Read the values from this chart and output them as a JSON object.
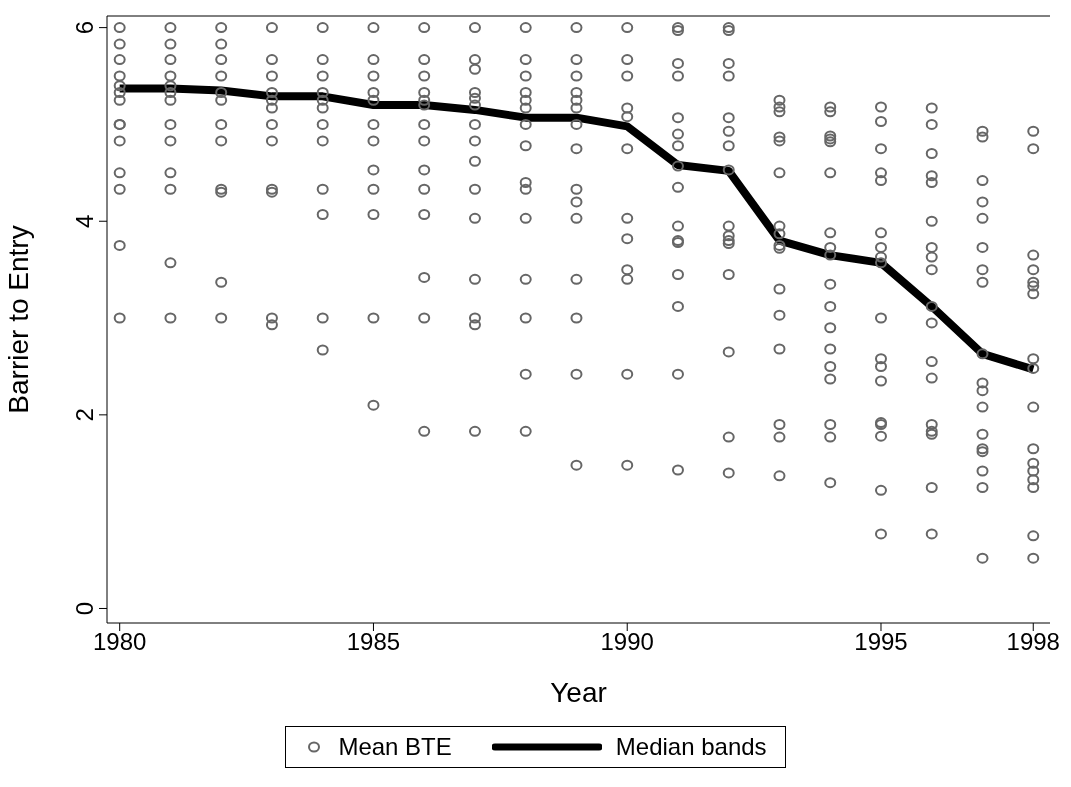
{
  "chart_data": {
    "type": "scatter",
    "xlabel": "Year",
    "ylabel": "Barrier to Entry",
    "xlim": [
      1979.75,
      1998.33
    ],
    "xticks": [
      1980,
      1985,
      1990,
      1995,
      1998
    ],
    "ylim": [
      -0.15,
      6.12
    ],
    "yticks": [
      0,
      2,
      4,
      6
    ],
    "grid": false,
    "legend": "bottom",
    "series": [
      {
        "name": "Mean BTE",
        "marker": "circle",
        "color": "#666666",
        "x": [
          1980,
          1980,
          1980,
          1980,
          1980,
          1980,
          1980,
          1980,
          1980,
          1980,
          1980,
          1980,
          1980,
          1980,
          1981,
          1981,
          1981,
          1981,
          1981,
          1981,
          1981,
          1981,
          1981,
          1981,
          1981,
          1981,
          1981,
          1982,
          1982,
          1982,
          1982,
          1982,
          1982,
          1982,
          1982,
          1982,
          1982,
          1982,
          1982,
          1983,
          1983,
          1983,
          1983,
          1983,
          1983,
          1983,
          1983,
          1983,
          1983,
          1983,
          1983,
          1984,
          1984,
          1984,
          1984,
          1984,
          1984,
          1984,
          1984,
          1984,
          1984,
          1984,
          1984,
          1985,
          1985,
          1985,
          1985,
          1985,
          1985,
          1985,
          1985,
          1985,
          1985,
          1985,
          1985,
          1986,
          1986,
          1986,
          1986,
          1986,
          1986,
          1986,
          1986,
          1986,
          1986,
          1986,
          1986,
          1986,
          1986,
          1987,
          1987,
          1987,
          1987,
          1987,
          1987,
          1987,
          1987,
          1987,
          1987,
          1987,
          1987,
          1987,
          1987,
          1987,
          1988,
          1988,
          1988,
          1988,
          1988,
          1988,
          1988,
          1988,
          1988,
          1988,
          1988,
          1988,
          1988,
          1988,
          1988,
          1989,
          1989,
          1989,
          1989,
          1989,
          1989,
          1989,
          1989,
          1989,
          1989,
          1989,
          1989,
          1989,
          1989,
          1989,
          1990,
          1990,
          1990,
          1990,
          1990,
          1990,
          1990,
          1990,
          1990,
          1990,
          1990,
          1990,
          1991,
          1991,
          1991,
          1991,
          1991,
          1991,
          1991,
          1991,
          1991,
          1991,
          1991,
          1991,
          1991,
          1991,
          1991,
          1991,
          1992,
          1992,
          1992,
          1992,
          1992,
          1992,
          1992,
          1992,
          1992,
          1992,
          1992,
          1992,
          1992,
          1992,
          1992,
          1992,
          1993,
          1993,
          1993,
          1993,
          1993,
          1993,
          1993,
          1993,
          1993,
          1993,
          1993,
          1993,
          1993,
          1993,
          1993,
          1993,
          1994,
          1994,
          1994,
          1994,
          1994,
          1994,
          1994,
          1994,
          1994,
          1994,
          1994,
          1994,
          1994,
          1994,
          1994,
          1994,
          1994,
          1994,
          1995,
          1995,
          1995,
          1995,
          1995,
          1995,
          1995,
          1995,
          1995,
          1995,
          1995,
          1995,
          1995,
          1995,
          1995,
          1995,
          1995,
          1995,
          1996,
          1996,
          1996,
          1996,
          1996,
          1996,
          1996,
          1996,
          1996,
          1996,
          1996,
          1996,
          1996,
          1996,
          1996,
          1996,
          1996,
          1996,
          1997,
          1997,
          1997,
          1997,
          1997,
          1997,
          1997,
          1997,
          1997,
          1997,
          1997,
          1997,
          1997,
          1997,
          1997,
          1997,
          1997,
          1997,
          1998,
          1998,
          1998,
          1998,
          1998,
          1998,
          1998,
          1998,
          1998,
          1998,
          1998,
          1998,
          1998,
          1998,
          1998,
          1998,
          1998
        ],
        "values": [
          6,
          5.83,
          5.67,
          5.5,
          5.4,
          5.33,
          5.25,
          5.0,
          5.0,
          4.83,
          4.5,
          4.33,
          3.75,
          3.0,
          6,
          5.83,
          5.67,
          5.5,
          5.4,
          5.33,
          5.25,
          5.0,
          4.83,
          4.5,
          4.33,
          3.57,
          3.0,
          6,
          5.83,
          5.67,
          5.5,
          5.33,
          5.25,
          5.0,
          4.83,
          4.33,
          4.3,
          3.37,
          3.0,
          6,
          5.67,
          5.5,
          5.33,
          5.25,
          5.17,
          5.0,
          4.83,
          4.33,
          4.3,
          3.0,
          2.93,
          6,
          5.67,
          5.5,
          5.33,
          5.25,
          5.17,
          5.0,
          4.83,
          4.33,
          4.07,
          3.0,
          2.67,
          6,
          5.67,
          5.5,
          5.33,
          5.25,
          5.0,
          4.83,
          4.53,
          4.33,
          4.07,
          3.0,
          2.1,
          6,
          5.67,
          5.5,
          5.33,
          5.25,
          5.2,
          5.0,
          4.83,
          4.53,
          4.33,
          4.07,
          3.42,
          3.0,
          1.83,
          6,
          5.67,
          5.57,
          5.33,
          5.27,
          5.2,
          5.0,
          4.83,
          4.62,
          4.33,
          4.03,
          3.4,
          3.0,
          2.93,
          1.83,
          6,
          5.67,
          5.5,
          5.33,
          5.25,
          5.17,
          5.0,
          4.78,
          4.4,
          4.33,
          4.03,
          3.4,
          3.0,
          2.42,
          1.83,
          6,
          5.67,
          5.5,
          5.33,
          5.25,
          5.17,
          5.0,
          4.75,
          4.33,
          4.2,
          4.03,
          3.4,
          3.0,
          2.42,
          1.48,
          6,
          5.67,
          5.5,
          5.17,
          5.08,
          4.75,
          4.03,
          3.82,
          3.5,
          3.4,
          2.42,
          1.48,
          6,
          5.97,
          5.63,
          5.5,
          5.07,
          4.9,
          4.78,
          4.57,
          4.35,
          3.95,
          3.8,
          3.78,
          3.45,
          3.12,
          2.42,
          1.43,
          6,
          5.97,
          5.63,
          5.5,
          5.07,
          4.93,
          4.78,
          4.53,
          3.95,
          3.85,
          3.8,
          3.77,
          3.45,
          2.65,
          1.77,
          1.4,
          5.25,
          5.18,
          5.13,
          4.87,
          4.83,
          4.5,
          3.95,
          3.87,
          3.75,
          3.72,
          3.3,
          3.03,
          2.68,
          1.9,
          1.77,
          1.37,
          5.18,
          5.13,
          4.88,
          4.85,
          4.82,
          4.5,
          3.88,
          3.73,
          3.65,
          3.35,
          3.12,
          2.9,
          2.68,
          2.5,
          2.37,
          1.9,
          1.77,
          1.3,
          5.18,
          5.03,
          4.75,
          4.5,
          4.42,
          3.88,
          3.73,
          3.63,
          3.57,
          3.0,
          2.58,
          2.5,
          2.35,
          1.92,
          1.9,
          1.78,
          1.22,
          0.77,
          5.17,
          5.0,
          4.7,
          4.47,
          4.4,
          4.0,
          3.73,
          3.63,
          3.5,
          3.12,
          2.95,
          2.55,
          2.38,
          1.9,
          1.83,
          1.8,
          1.25,
          0.77,
          4.93,
          4.87,
          4.42,
          4.2,
          4.03,
          3.73,
          3.5,
          3.37,
          2.63,
          2.33,
          2.25,
          2.08,
          1.8,
          1.65,
          1.62,
          1.42,
          1.25,
          0.52,
          4.93,
          4.75,
          3.65,
          3.5,
          3.37,
          3.33,
          3.25,
          2.58,
          2.48,
          2.08,
          1.65,
          1.5,
          1.42,
          1.33,
          1.25,
          0.75,
          0.52
        ]
      },
      {
        "name": "Median bands",
        "type": "line",
        "marker": "none",
        "line_style": "solid",
        "color": "#000000",
        "x": [
          1980,
          1981,
          1982,
          1983,
          1984,
          1985,
          1986,
          1987,
          1988,
          1989,
          1990,
          1991,
          1992,
          1993,
          1994,
          1995,
          1996,
          1997,
          1998
        ],
        "values": [
          5.37,
          5.37,
          5.35,
          5.29,
          5.29,
          5.2,
          5.2,
          5.15,
          5.07,
          5.07,
          4.98,
          4.58,
          4.52,
          3.8,
          3.65,
          3.57,
          3.12,
          2.63,
          2.47
        ]
      }
    ]
  }
}
